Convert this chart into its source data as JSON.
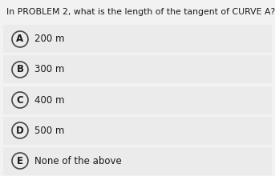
{
  "title": "In PROBLEM 2, what is the length of the tangent of CURVE A?",
  "options": [
    "A",
    "B",
    "C",
    "D",
    "E"
  ],
  "answers": [
    "200 m",
    "300 m",
    "400 m",
    "500 m",
    "None of the above"
  ],
  "bg_color": "#f2f2f2",
  "title_color": "#1a1a1a",
  "option_bg_color": "#ebebeb",
  "option_text_color": "#1a1a1a",
  "circle_edge_color": "#444444",
  "title_fontsize": 7.8,
  "option_fontsize": 8.5,
  "fig_width": 3.43,
  "fig_height": 2.2,
  "dpi": 100
}
